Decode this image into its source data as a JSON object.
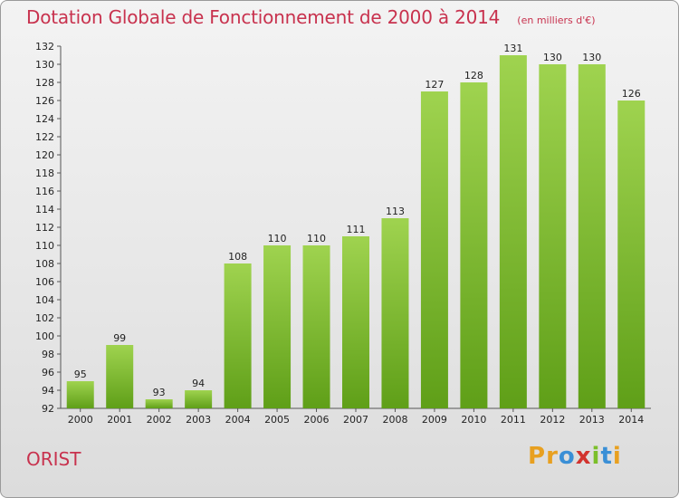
{
  "header": {
    "title": "Dotation Globale de Fonctionnement de 2000 à 2014",
    "unit": "(en milliers d'€)"
  },
  "footer": {
    "commune": "ORIST",
    "brand": "Proxiti"
  },
  "colors": {
    "title": "#c8324e",
    "bar_top": "#9fd34f",
    "bar_bottom": "#5f9f18",
    "brand_letters": [
      "#e8a020",
      "#e8a020",
      "#3a8fd6",
      "#d2332e",
      "#7bbf2a",
      "#3a8fd6",
      "#e8a020"
    ]
  },
  "chart_data": {
    "type": "bar",
    "title": "Dotation Globale de Fonctionnement de 2000 à 2014",
    "subtitle": "(en milliers d'€)",
    "categories": [
      "2000",
      "2001",
      "2002",
      "2003",
      "2004",
      "2005",
      "2006",
      "2007",
      "2008",
      "2009",
      "2010",
      "2011",
      "2012",
      "2013",
      "2014"
    ],
    "values": [
      95,
      99,
      93,
      94,
      108,
      110,
      110,
      111,
      113,
      127,
      128,
      131,
      130,
      130,
      126
    ],
    "ylim": [
      92,
      132
    ],
    "yticks": [
      92,
      94,
      96,
      98,
      100,
      102,
      104,
      106,
      108,
      110,
      112,
      114,
      116,
      118,
      120,
      122,
      124,
      126,
      128,
      130,
      132
    ],
    "grid": false,
    "legend": "none"
  }
}
